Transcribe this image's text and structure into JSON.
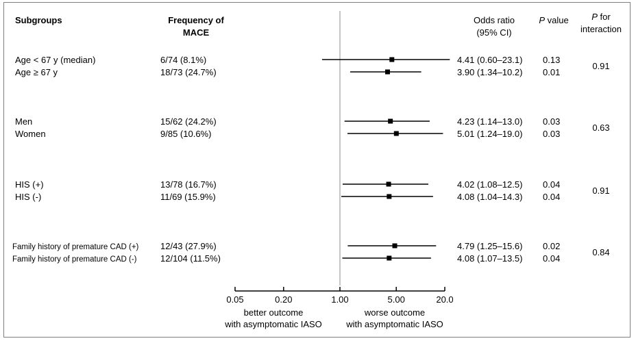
{
  "headers": {
    "subgroups": "Subgroups",
    "frequency_line1": "Frequency of",
    "frequency_line2": "MACE",
    "or_line1": "Odds ratio",
    "or_line2": "(95% CI)",
    "p_value_italic": "P",
    "p_value_rest": " value",
    "p_inter_italic": "P",
    "p_inter_rest": " for",
    "p_inter_line2": "interaction"
  },
  "axis": {
    "ticks": [
      0.05,
      0.2,
      1.0,
      5.0,
      20.0
    ],
    "tick_labels": [
      "0.05",
      "0.20",
      "1.00",
      "5.00",
      "20.0"
    ],
    "left_label_line1": "better outcome",
    "left_label_line2": "with asymptomatic IASO",
    "right_label_line1": "worse outcome",
    "right_label_line2": "with asymptomatic IASO"
  },
  "chart_data": {
    "type": "forest",
    "scale": "log",
    "xlim": [
      0.05,
      20.0
    ],
    "reference_line": 1.0,
    "groups": [
      {
        "interaction_p": "0.91",
        "rows": [
          {
            "label": "Age < 67 y (median)",
            "frequency": "6/74 (8.1%)",
            "or": 4.41,
            "lo": 0.6,
            "hi": 23.1,
            "or_text": "4.41 (0.60–23.1)",
            "p": "0.13",
            "small": false
          },
          {
            "label": "Age ≥ 67 y",
            "frequency": "18/73 (24.7%)",
            "or": 3.9,
            "lo": 1.34,
            "hi": 10.2,
            "or_text": "3.90 (1.34–10.2)",
            "p": "0.01",
            "small": false
          }
        ]
      },
      {
        "interaction_p": "0.63",
        "rows": [
          {
            "label": "Men",
            "frequency": "15/62 (24.2%)",
            "or": 4.23,
            "lo": 1.14,
            "hi": 13.0,
            "or_text": "4.23 (1.14–13.0)",
            "p": "0.03",
            "small": false
          },
          {
            "label": "Women",
            "frequency": "9/85 (10.6%)",
            "or": 5.01,
            "lo": 1.24,
            "hi": 19.0,
            "or_text": "5.01 (1.24–19.0)",
            "p": "0.03",
            "small": false
          }
        ]
      },
      {
        "interaction_p": "0.91",
        "rows": [
          {
            "label": "HIS (+)",
            "frequency": "13/78 (16.7%)",
            "or": 4.02,
            "lo": 1.08,
            "hi": 12.5,
            "or_text": "4.02 (1.08–12.5)",
            "p": "0.04",
            "small": false
          },
          {
            "label": "HIS (-)",
            "frequency": "11/69 (15.9%)",
            "or": 4.08,
            "lo": 1.04,
            "hi": 14.3,
            "or_text": "4.08 (1.04–14.3)",
            "p": "0.04",
            "small": false
          }
        ]
      },
      {
        "interaction_p": "0.84",
        "rows": [
          {
            "label": "Family history of premature CAD (+)",
            "frequency": "12/43 (27.9%)",
            "or": 4.79,
            "lo": 1.25,
            "hi": 15.6,
            "or_text": "4.79 (1.25–15.6)",
            "p": "0.02",
            "small": true
          },
          {
            "label": "Family history of premature CAD (-)",
            "frequency": "12/104 (11.5%)",
            "or": 4.08,
            "lo": 1.07,
            "hi": 13.5,
            "or_text": "4.08 (1.07–13.5)",
            "p": "0.04",
            "small": true
          }
        ]
      }
    ]
  }
}
